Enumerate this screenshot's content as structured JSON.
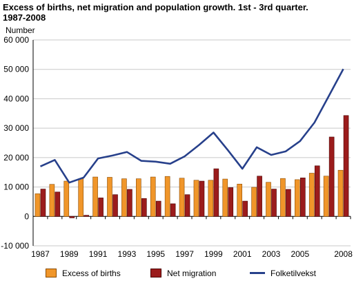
{
  "chart_data": {
    "type": "bar",
    "title_line1": "Excess of births, net migration and population growth. 1st - 3rd quarter.",
    "title_line2": "1987-2008",
    "ylabel": "Number",
    "ylim": [
      -10000,
      60000
    ],
    "yticks": [
      60000,
      50000,
      40000,
      30000,
      20000,
      10000,
      0,
      -10000
    ],
    "ytick_labels": [
      "60 000",
      "50 000",
      "40 000",
      "30 000",
      "20 000",
      "10 000",
      "0",
      "-10 000"
    ],
    "grid": true,
    "categories": [
      "1987",
      "1988",
      "1989",
      "1990",
      "1991",
      "1992",
      "1993",
      "1994",
      "1995",
      "1996",
      "1997",
      "1998",
      "1999",
      "2000",
      "2001",
      "2002",
      "2003",
      "2004",
      "2005",
      "2006",
      "2007",
      "2008"
    ],
    "xtick_labels": [
      "1987",
      "",
      "1989",
      "",
      "1991",
      "",
      "1993",
      "",
      "1995",
      "",
      "1997",
      "",
      "1999",
      "",
      "2001",
      "",
      "2003",
      "",
      "2005",
      "",
      "",
      "2008"
    ],
    "series": [
      {
        "name": "Excess of births",
        "kind": "bar",
        "color": "#f0962a",
        "values": [
          7700,
          10900,
          12000,
          12800,
          13400,
          13300,
          12800,
          12800,
          13400,
          13600,
          13000,
          12300,
          12300,
          12700,
          11000,
          9900,
          11600,
          12900,
          12500,
          14700,
          13700,
          15700
        ]
      },
      {
        "name": "Net migration",
        "kind": "bar",
        "color": "#9b1c1c",
        "values": [
          9300,
          8300,
          -500,
          400,
          6300,
          7400,
          9200,
          6100,
          5200,
          4300,
          7400,
          12000,
          16200,
          9800,
          5200,
          13700,
          9300,
          9200,
          13100,
          17200,
          27000,
          34300
        ]
      },
      {
        "name": "Folketilvekst",
        "kind": "line",
        "color": "#27408b",
        "values": [
          17000,
          19200,
          11500,
          13200,
          19700,
          20700,
          21900,
          18900,
          18600,
          17900,
          20400,
          24300,
          28500,
          22500,
          16200,
          23500,
          20900,
          22100,
          25600,
          31900,
          41000,
          50100
        ]
      }
    ],
    "legend_position": "bottom"
  }
}
